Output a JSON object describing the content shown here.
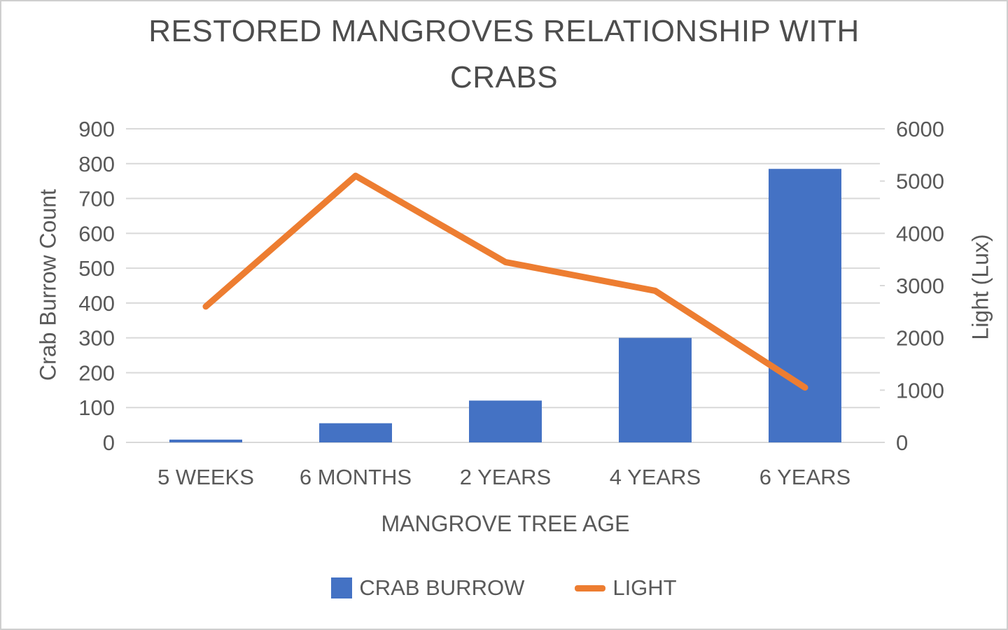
{
  "window": {
    "background": "#ffffff",
    "border_color": "#cfcfcf"
  },
  "title": {
    "text": "RESTORED MANGROVES RELATIONSHIP WITH CRABS",
    "line1": "RESTORED MANGROVES RELATIONSHIP WITH",
    "line2": "CRABS"
  },
  "axes": {
    "left_title": "Crab Burrow Count",
    "right_title": "Light (Lux)",
    "x_title": "MANGROVE TREE AGE"
  },
  "legend": {
    "items": [
      {
        "label": "CRAB BURROW",
        "marker": "bar-swatch",
        "color": "#4472C4"
      },
      {
        "label": "LIGHT",
        "marker": "line-swatch",
        "color": "#ED7D31"
      }
    ]
  },
  "colors": {
    "bar": "#4472C4",
    "line": "#ED7D31",
    "text": "#595959",
    "title": "#4d4d4d",
    "gridline": "#D9D9D9"
  },
  "chart_data": {
    "type": "combo",
    "title": "RESTORED MANGROVES RELATIONSHIP WITH CRABS",
    "xlabel": "MANGROVE TREE AGE",
    "ylabel_left": "Crab Burrow Count",
    "ylabel_right": "Light (Lux)",
    "categories": [
      "5 WEEKS",
      "6 MONTHS",
      "2 YEARS",
      "4 YEARS",
      "6 YEARS"
    ],
    "series": [
      {
        "name": "CRAB BURROW",
        "type": "bar",
        "axis": "left",
        "color": "#4472C4",
        "values": [
          8,
          55,
          120,
          300,
          785
        ]
      },
      {
        "name": "LIGHT",
        "type": "line",
        "axis": "right",
        "color": "#ED7D31",
        "values": [
          2600,
          5100,
          3450,
          2900,
          1050
        ]
      }
    ],
    "ylim_left": [
      0,
      900
    ],
    "yticks_left": [
      0,
      100,
      200,
      300,
      400,
      500,
      600,
      700,
      800,
      900
    ],
    "ylim_right": [
      0,
      6000
    ],
    "yticks_right": [
      0,
      1000,
      2000,
      3000,
      4000,
      5000,
      6000
    ],
    "grid": true,
    "legend_position": "bottom"
  }
}
